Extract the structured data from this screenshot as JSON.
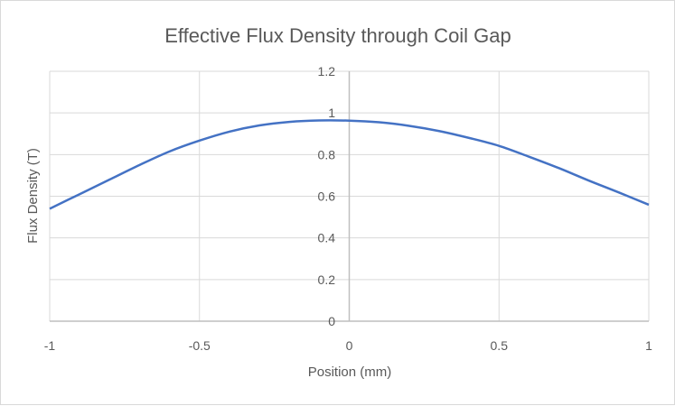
{
  "chart_data": {
    "type": "line",
    "title": "Effective Flux Density through Coil Gap",
    "xlabel": "Position (mm)",
    "ylabel": "Flux Density (T)",
    "xlim": [
      -1,
      1
    ],
    "ylim": [
      0,
      1.2
    ],
    "x_ticks": [
      "-1",
      "-0.5",
      "0",
      "0.5",
      "1"
    ],
    "y_ticks": [
      "0",
      "0.2",
      "0.4",
      "0.6",
      "0.8",
      "1",
      "1.2"
    ],
    "grid": true,
    "line_color": "#4472c4",
    "series": [
      {
        "x": [
          -1,
          -0.9,
          -0.8,
          -0.7,
          -0.6,
          -0.5,
          -0.4,
          -0.3,
          -0.2,
          -0.1,
          0,
          0.1,
          0.2,
          0.3,
          0.4,
          0.5,
          0.6,
          0.7,
          0.8,
          0.9,
          1
        ],
        "values": [
          0.54,
          0.61,
          0.68,
          0.75,
          0.815,
          0.867,
          0.91,
          0.94,
          0.957,
          0.964,
          0.963,
          0.955,
          0.938,
          0.913,
          0.88,
          0.842,
          0.79,
          0.735,
          0.675,
          0.618,
          0.559
        ]
      }
    ]
  }
}
